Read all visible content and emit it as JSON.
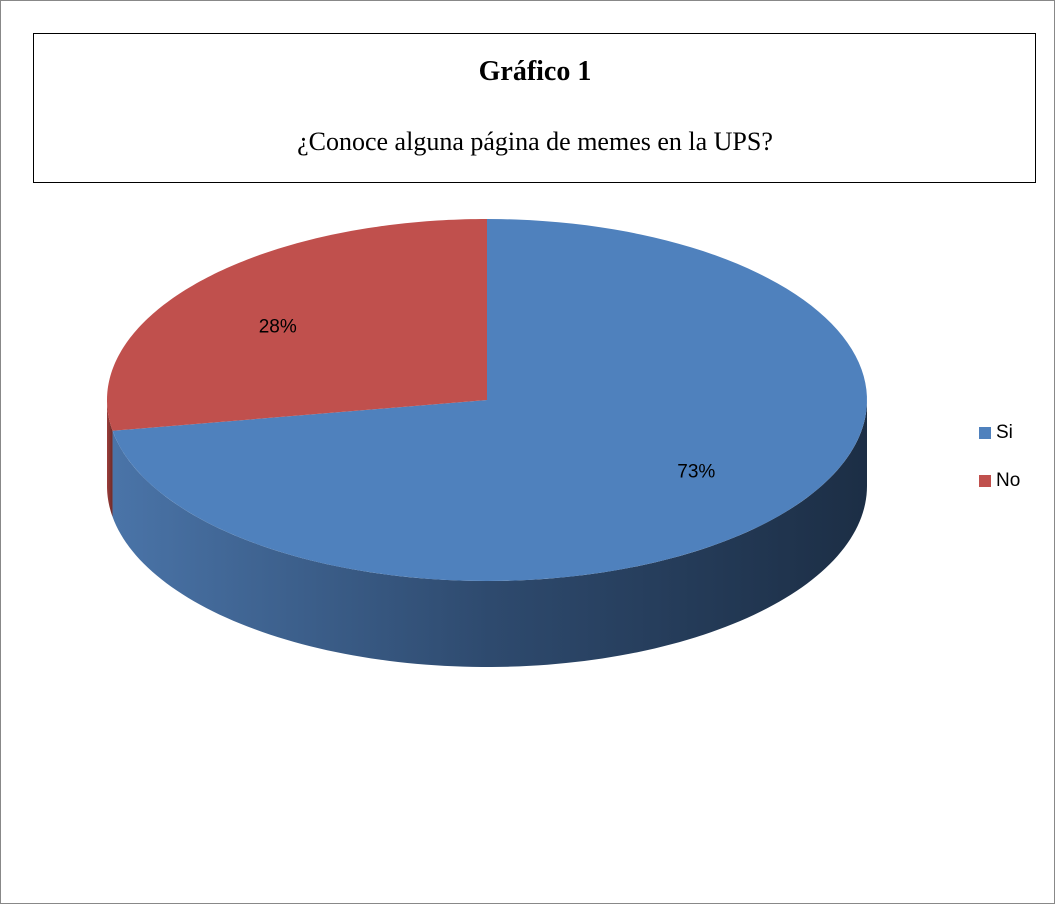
{
  "chart_data": {
    "type": "pie",
    "title": "Gráfico 1",
    "subtitle": "¿Conoce alguna página de memes en la UPS?",
    "categories": [
      "Si",
      "No"
    ],
    "values": [
      73,
      28
    ],
    "value_labels": [
      "73%",
      "28%"
    ],
    "colors": [
      "#4f81bd",
      "#c0504d"
    ],
    "legend": "right"
  }
}
